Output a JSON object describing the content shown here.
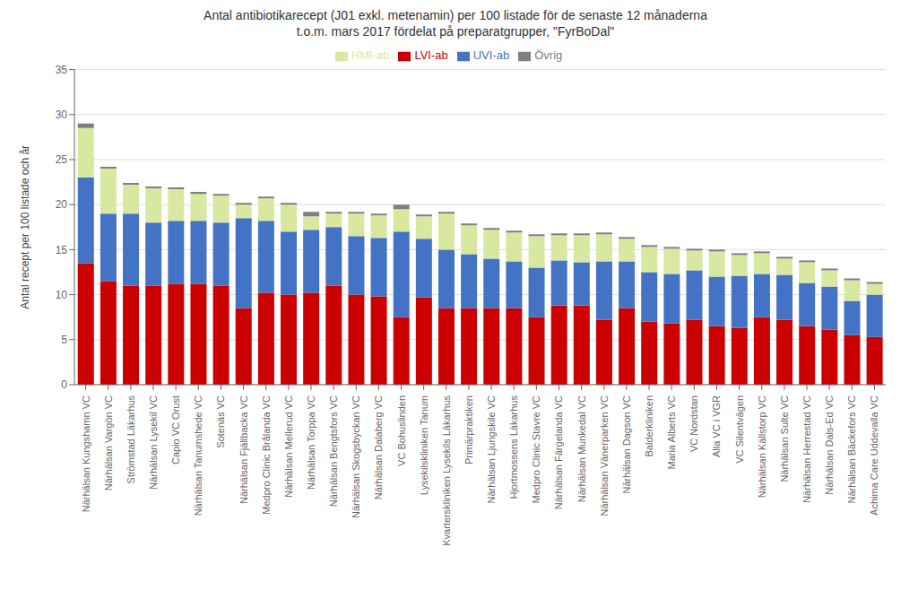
{
  "chart_data": {
    "type": "bar",
    "title": "Antal antibiotikarecept (J01 exkl. metenamin) per 100 listade för de senaste 12 månaderna",
    "subtitle": "t.o.m. mars 2017 fördelat på preparatgrupper, \"FyrBoDal\"",
    "ylabel": "Antal recept per 100 listade och år",
    "categories": [
      "Närhälsan Kungshamn VC",
      "Närhälsan Vargön VC",
      "Strömstad Läkarhus",
      "Närhälsan Lysekil VC",
      "Capio VC Orust",
      "Närhälsan Tanumshede VC",
      "Sotenäs VC",
      "Närhälsan Fjällbacka VC",
      "Medpro Clinic Brålanda VC",
      "Närhälsan Mellerud VC",
      "Närhälsan Torppa VC",
      "Närhälsan Bengtsfors VC",
      "Närhälsan Skogsbyckan VC",
      "Närhälsan Dalaberg VC",
      "VC Bohuslinden",
      "Lysekilskliniken Tanum",
      "Kvarterskliniken Lysekils Läkarhus",
      "Primärpraktiken",
      "Närhälsan Ljungskile VC",
      "Hjortmossens Läkarhus",
      "Medpro Clinic Stavre VC",
      "Närhälsan Färgelanda VC",
      "Närhälsan Munkedal VC",
      "Närhälsan Vänerparken VC",
      "Närhälsan Dagson VC",
      "Balderkliniken",
      "Maria Alberts VC",
      "VC Nordstan",
      "Alla VC i VGR",
      "VC Silentvägen",
      "Närhälsan Källstorp VC",
      "Närhälsan Sulte VC",
      "Närhälsan Herrestad VC",
      "Närhälsan Dals-Ed VC",
      "Närhälsan Bäckefors VC",
      "Achima Care Uddevalla VC"
    ],
    "series": [
      {
        "name": "LVI-ab",
        "color": "#cc0000",
        "values": [
          13.5,
          11.5,
          11.0,
          11.0,
          11.2,
          11.2,
          11.0,
          8.5,
          10.2,
          10.0,
          10.2,
          11.0,
          10.0,
          9.8,
          7.5,
          9.7,
          8.5,
          8.5,
          8.5,
          8.5,
          7.5,
          8.8,
          8.8,
          7.2,
          8.5,
          7.0,
          6.8,
          7.2,
          6.5,
          6.3,
          7.5,
          7.2,
          6.5,
          6.1,
          5.5,
          5.3
        ]
      },
      {
        "name": "UVI-ab",
        "color": "#4472c4",
        "values": [
          9.5,
          7.5,
          8.0,
          7.0,
          7.0,
          7.0,
          7.0,
          10.0,
          8.0,
          7.0,
          7.0,
          6.5,
          6.5,
          6.5,
          9.5,
          6.5,
          6.5,
          6.0,
          5.5,
          5.2,
          5.5,
          5.0,
          4.8,
          6.5,
          5.2,
          5.5,
          5.5,
          5.5,
          5.5,
          5.8,
          4.8,
          5.0,
          4.8,
          4.8,
          3.8,
          4.7
        ]
      },
      {
        "name": "HMI-ab",
        "color": "#d9e8a0",
        "values": [
          5.5,
          5.0,
          3.2,
          3.8,
          3.5,
          3.0,
          3.0,
          1.5,
          2.5,
          3.0,
          1.5,
          1.5,
          2.5,
          2.5,
          2.5,
          2.5,
          4.0,
          3.2,
          3.2,
          3.2,
          3.5,
          2.8,
          3.0,
          3.0,
          2.5,
          2.8,
          2.8,
          2.2,
          2.8,
          2.3,
          2.3,
          1.8,
          2.3,
          1.8,
          2.3,
          1.2
        ]
      },
      {
        "name": "Övrig",
        "color": "#7f7f7f",
        "values": [
          0.5,
          0.2,
          0.2,
          0.2,
          0.2,
          0.2,
          0.2,
          0.2,
          0.2,
          0.2,
          0.5,
          0.2,
          0.2,
          0.2,
          0.5,
          0.2,
          0.2,
          0.2,
          0.2,
          0.2,
          0.2,
          0.2,
          0.2,
          0.2,
          0.2,
          0.2,
          0.2,
          0.2,
          0.2,
          0.2,
          0.2,
          0.2,
          0.2,
          0.2,
          0.2,
          0.2
        ]
      }
    ],
    "ylim": [
      0,
      35
    ],
    "yticks": [
      0,
      5,
      10,
      15,
      20,
      25,
      30,
      35
    ],
    "stacked": true,
    "grid": true,
    "legend": "top"
  }
}
